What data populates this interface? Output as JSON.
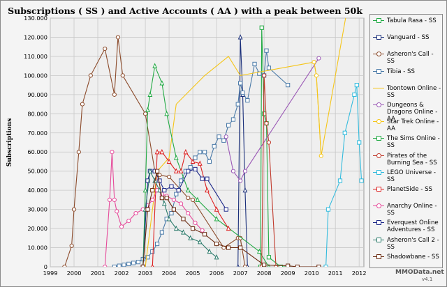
{
  "chart_data": {
    "type": "line",
    "title": "Subscriptions ( SS ) and Active Accounts ( AA ) with a peak between 50k and 150k",
    "ylabel": "Subscriptions",
    "xlabel": "",
    "xlim": [
      1999,
      2012.2
    ],
    "ylim": [
      0,
      130000
    ],
    "x_ticks": [
      1999,
      2000,
      2001,
      2002,
      2003,
      2004,
      2005,
      2006,
      2007,
      2008,
      2009,
      2010,
      2011,
      2012
    ],
    "y_ticks": [
      0,
      10000,
      20000,
      30000,
      40000,
      50000,
      60000,
      70000,
      80000,
      90000,
      100000,
      110000,
      120000,
      130000
    ],
    "y_tick_labels": [
      "0",
      "10.000",
      "20.000",
      "30.000",
      "40.000",
      "50.000",
      "60.000",
      "70.000",
      "80.000",
      "90.000",
      "100.000",
      "110.000",
      "120.000",
      "130.000"
    ],
    "grid": true,
    "legend_position": "right",
    "series": [
      {
        "name": "Tabula Rasa - SS",
        "color": "#22aa44",
        "marker": "square",
        "x": [
          2007.85,
          2007.9,
          2008.0,
          2008.1,
          2008.2,
          2008.7,
          2009.0
        ],
        "y": [
          0,
          125000,
          80000,
          75000,
          5000,
          0,
          0
        ]
      },
      {
        "name": "Vanguard - SS",
        "color": "#1a2f7a",
        "marker": "triangle",
        "x": [
          2006.9,
          2007.0,
          2007.1,
          2007.2,
          2007.3
        ],
        "y": [
          0,
          120000,
          90000,
          40000,
          0
        ]
      },
      {
        "name": "Asheron's Call - SS",
        "color": "#8b4a2a",
        "marker": "circle",
        "x": [
          1999.6,
          1999.9,
          2000.0,
          2000.2,
          2000.35,
          2000.7,
          2001.3,
          2001.7,
          2001.85,
          2002.05,
          2003.0,
          2003.4,
          2003.6,
          2004.0,
          2004.8,
          2005.0,
          2006.3,
          2006.9,
          2007.0,
          2007.2
        ],
        "y": [
          0,
          11000,
          30000,
          60000,
          85000,
          100000,
          114000,
          90000,
          120000,
          100000,
          80000,
          50000,
          48000,
          47000,
          36000,
          35000,
          10000,
          15000,
          15000,
          0
        ]
      },
      {
        "name": "Tibia - SS",
        "color": "#4a7aa8",
        "marker": "square",
        "x": [
          2001.7,
          2001.9,
          2002.1,
          2002.3,
          2002.5,
          2002.7,
          2002.9,
          2003.1,
          2003.3,
          2003.5,
          2003.7,
          2003.9,
          2004.1,
          2004.3,
          2004.5,
          2004.7,
          2004.9,
          2005.1,
          2005.3,
          2005.5,
          2005.7,
          2005.9,
          2006.1,
          2006.3,
          2006.5,
          2006.7,
          2006.9,
          2007.0,
          2007.1,
          2007.3,
          2007.6,
          2007.8,
          2008.0,
          2008.1,
          2008.2,
          2009.0
        ],
        "y": [
          0,
          500,
          1000,
          1500,
          2000,
          2500,
          4000,
          5000,
          8000,
          12000,
          18000,
          25000,
          28000,
          38000,
          45000,
          50000,
          52000,
          57000,
          60000,
          60000,
          55000,
          63000,
          68000,
          66000,
          74000,
          77000,
          85000,
          96000,
          91000,
          87000,
          106000,
          101000,
          100000,
          113000,
          104000,
          95000
        ]
      },
      {
        "name": "Toontown Online - SS",
        "color": "#f5c518",
        "marker": "none",
        "x": [
          2003.0,
          2003.5,
          2004.0,
          2004.3,
          2005.5,
          2006.5,
          2007.0,
          2010.1,
          2010.2,
          2010.4,
          2011.5
        ],
        "y": [
          0,
          50000,
          57000,
          85000,
          100000,
          110000,
          100000,
          107000,
          100000,
          58000,
          135000
        ]
      },
      {
        "name": "Dungeons & Dragons Online - AA",
        "color": "#9b59b6",
        "marker": "circle",
        "x": [
          2006.4,
          2006.7,
          2007.0,
          2007.2,
          2010.3
        ],
        "y": [
          68000,
          50000,
          45000,
          50000,
          109000
        ]
      },
      {
        "name": "Star Trek Online - AA",
        "color": "#f5c518",
        "marker": "circle",
        "x": [
          2010.1,
          2010.2,
          2010.4
        ],
        "y": [
          107000,
          100000,
          58000
        ]
      },
      {
        "name": "The Sims Online - SS",
        "color": "#22aa44",
        "marker": "triangle",
        "x": [
          2002.9,
          2003.0,
          2003.1,
          2003.2,
          2003.4,
          2003.7,
          2003.9,
          2004.3,
          2004.8,
          2005.2,
          2006.0,
          2007.8,
          2008.2
        ],
        "y": [
          0,
          40000,
          82000,
          90000,
          105000,
          96000,
          80000,
          57000,
          40000,
          35000,
          25000,
          8000,
          0
        ]
      },
      {
        "name": "Pirates of the Burning Sea - SS",
        "color": "#c0392b",
        "marker": "circle",
        "x": [
          2007.9,
          2008.0,
          2008.1,
          2008.2,
          2008.5
        ],
        "y": [
          0,
          100000,
          75000,
          65000,
          0
        ]
      },
      {
        "name": "LEGO Universe - SS",
        "color": "#33bbdd",
        "marker": "square",
        "x": [
          2010.6,
          2010.7,
          2011.2,
          2011.4,
          2011.8,
          2011.9,
          2012.0,
          2012.1
        ],
        "y": [
          0,
          30000,
          45000,
          70000,
          90000,
          95000,
          65000,
          45000
        ]
      },
      {
        "name": "PlanetSide - SS",
        "color": "#dd2222",
        "marker": "triangle",
        "x": [
          2003.3,
          2003.5,
          2003.7,
          2004.0,
          2004.3,
          2004.5,
          2004.7,
          2005.0,
          2005.3,
          2005.6,
          2006.0,
          2006.5
        ],
        "y": [
          0,
          60000,
          60000,
          55000,
          50000,
          50000,
          60000,
          55000,
          54000,
          40000,
          30000,
          20000
        ]
      },
      {
        "name": "Anarchy Online - SS",
        "color": "#e64a9a",
        "marker": "circle",
        "x": [
          2001.3,
          2001.5,
          2001.6,
          2001.7,
          2001.8,
          2002.0,
          2002.3,
          2002.6,
          2002.9,
          2003.1,
          2003.3,
          2003.5,
          2003.7,
          2003.9,
          2004.2,
          2004.5,
          2004.8,
          2005.1,
          2005.4
        ],
        "y": [
          0,
          35000,
          60000,
          35000,
          29000,
          21000,
          24000,
          28000,
          30000,
          32000,
          35000,
          40000,
          38000,
          37000,
          35000,
          33000,
          28000,
          23000,
          19000
        ]
      },
      {
        "name": "Everquest Online Adventures - SS",
        "color": "#1f2a8a",
        "marker": "square",
        "x": [
          2002.9,
          2003.1,
          2003.2,
          2003.4,
          2003.6,
          2003.8,
          2004.1,
          2004.4,
          2004.8,
          2005.1,
          2005.4,
          2005.6,
          2006.4
        ],
        "y": [
          0,
          45000,
          50000,
          50000,
          45000,
          40000,
          42000,
          40000,
          50000,
          51000,
          46000,
          46000,
          30000
        ]
      },
      {
        "name": "Asheron's Call 2 - SS",
        "color": "#2a7a6a",
        "marker": "triangle",
        "x": [
          2002.9,
          2003.0,
          2003.2,
          2003.4,
          2003.6,
          2003.8,
          2004.0,
          2004.3,
          2004.6,
          2004.9,
          2005.3,
          2005.7,
          2006.0
        ],
        "y": [
          0,
          30000,
          50000,
          45000,
          40000,
          33000,
          25000,
          20000,
          18000,
          15000,
          13000,
          8000,
          5000
        ]
      },
      {
        "name": "Shadowbane - SS",
        "color": "#6a2a10",
        "marker": "square",
        "x": [
          2002.9,
          2003.1,
          2003.3,
          2003.5,
          2003.7,
          2003.9,
          2004.2,
          2004.6,
          2005.0,
          2005.5,
          2006.0,
          2006.5,
          2007.0,
          2008.0,
          2009.0,
          2009.4,
          2010.3
        ],
        "y": [
          0,
          30000,
          40000,
          50000,
          36000,
          36000,
          30000,
          25000,
          20000,
          17000,
          12000,
          10000,
          10000,
          1000,
          500,
          0,
          0
        ]
      }
    ]
  },
  "watermark": "MMOData.net",
  "version": "v4.1"
}
